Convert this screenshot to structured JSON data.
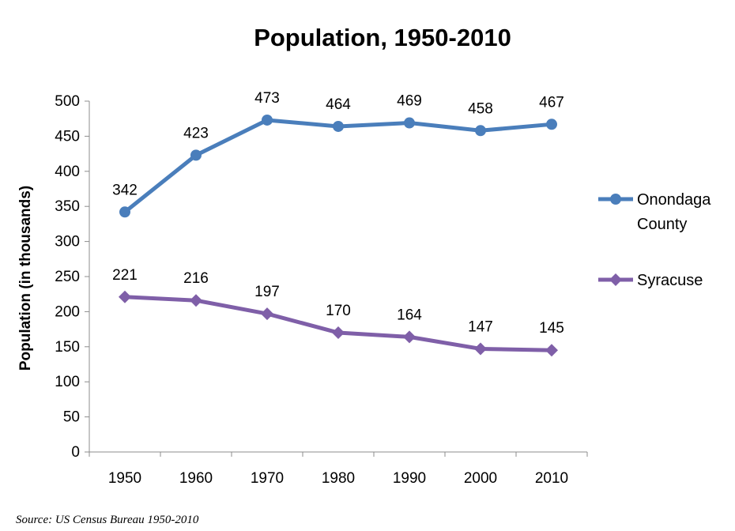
{
  "chart_data": {
    "type": "line",
    "title": "Population, 1950-2010",
    "xlabel": "",
    "ylabel": "Population (in thousands)",
    "categories": [
      "1950",
      "1960",
      "1970",
      "1980",
      "1990",
      "2000",
      "2010"
    ],
    "ylim": [
      0,
      500
    ],
    "yticks": [
      0,
      50,
      100,
      150,
      200,
      250,
      300,
      350,
      400,
      450,
      500
    ],
    "grid": false,
    "legend_position": "right",
    "series": [
      {
        "name_lines": [
          "Onondaga",
          "County"
        ],
        "values": [
          342,
          423,
          473,
          464,
          469,
          458,
          467
        ],
        "color": "#4a7ebb",
        "marker": "circle"
      },
      {
        "name_lines": [
          "Syracuse"
        ],
        "values": [
          221,
          216,
          197,
          170,
          164,
          147,
          145
        ],
        "color": "#7f5fa8",
        "marker": "diamond"
      }
    ],
    "source": "Source: US Census Bureau 1950-2010"
  }
}
